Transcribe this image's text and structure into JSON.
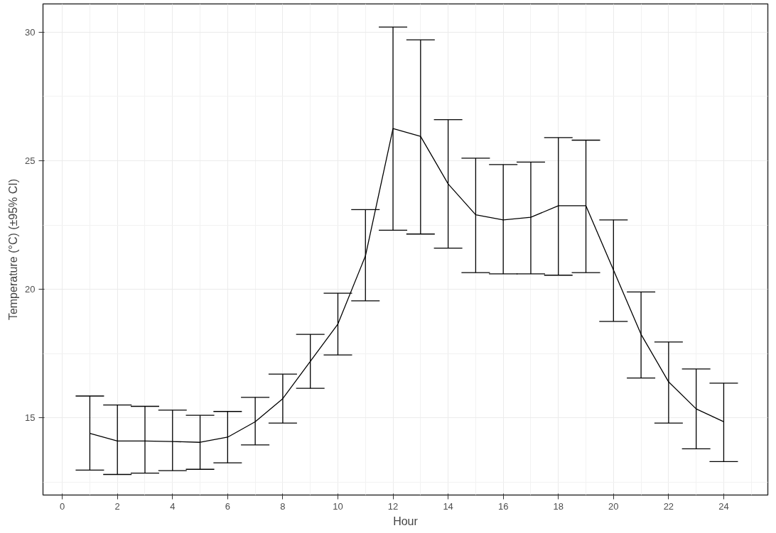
{
  "chart_data": {
    "type": "line",
    "xlabel": "Hour",
    "ylabel": "Temperature (°C) (±95% CI)",
    "x": [
      1,
      2,
      3,
      4,
      5,
      6,
      7,
      8,
      9,
      10,
      11,
      12,
      13,
      14,
      15,
      16,
      17,
      18,
      19,
      20,
      21,
      22,
      23,
      24
    ],
    "series": [
      {
        "color": "#000000",
        "values": [
          14.4,
          14.1,
          14.1,
          14.08,
          14.05,
          14.25,
          14.85,
          15.75,
          17.2,
          18.65,
          21.3,
          26.25,
          25.95,
          24.1,
          22.9,
          22.7,
          22.8,
          23.25,
          23.25,
          20.75,
          18.25,
          16.4,
          15.35,
          14.85
        ],
        "errors": [
          [
            12.97,
            15.85
          ],
          [
            12.8,
            15.5
          ],
          [
            12.85,
            15.45
          ],
          [
            12.95,
            15.3
          ],
          [
            13.0,
            15.1
          ],
          [
            13.25,
            15.25
          ],
          [
            13.95,
            15.8
          ],
          [
            14.8,
            16.7
          ],
          [
            16.15,
            18.25
          ],
          [
            17.45,
            19.85
          ],
          [
            19.55,
            23.1
          ],
          [
            22.3,
            30.2
          ],
          [
            22.15,
            29.7
          ],
          [
            21.6,
            26.6
          ],
          [
            20.65,
            25.1
          ],
          [
            20.6,
            24.85
          ],
          [
            20.6,
            24.95
          ],
          [
            20.55,
            25.9
          ],
          [
            20.65,
            25.8
          ],
          [
            18.75,
            22.7
          ],
          [
            16.55,
            19.9
          ],
          [
            14.8,
            17.95
          ],
          [
            13.8,
            16.9
          ],
          [
            13.3,
            16.35
          ]
        ]
      }
    ],
    "xlim": [
      -0.7,
      25.6
    ],
    "ylim": [
      12.0,
      31.1
    ],
    "xticks": [
      0,
      2,
      4,
      6,
      8,
      10,
      12,
      14,
      16,
      18,
      20,
      22,
      24
    ],
    "yticks": [
      15,
      20,
      25,
      30
    ],
    "grid": true,
    "marker": "none",
    "line_style": "solid"
  }
}
